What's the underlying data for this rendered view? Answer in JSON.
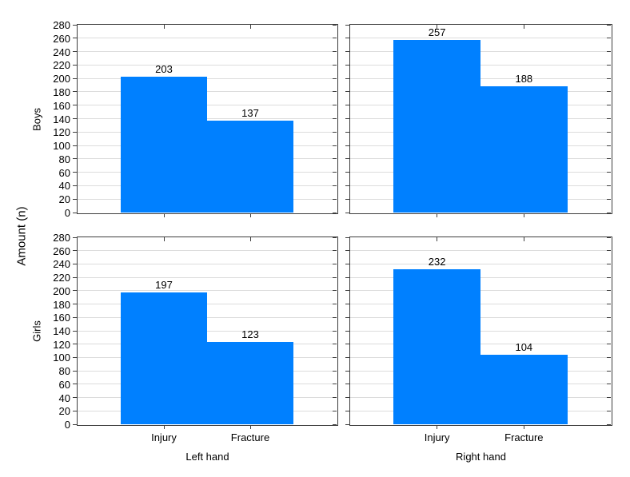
{
  "chart_data": {
    "type": "bar",
    "title": "",
    "ylabel": "Amount (n)",
    "xlabel": "",
    "row_labels": [
      "Boys",
      "Girls"
    ],
    "col_labels": [
      "Left hand",
      "Right hand"
    ],
    "categories": [
      "Injury",
      "Fracture"
    ],
    "ylim": [
      0,
      280
    ],
    "ytick_step": 20,
    "grid": true,
    "legend": "none",
    "panels": [
      {
        "row": "Boys",
        "col": "Left hand",
        "categories": [
          "Injury",
          "Fracture"
        ],
        "values": [
          203,
          137
        ]
      },
      {
        "row": "Boys",
        "col": "Right hand",
        "categories": [
          "Injury",
          "Fracture"
        ],
        "values": [
          257,
          188
        ]
      },
      {
        "row": "Girls",
        "col": "Left hand",
        "categories": [
          "Injury",
          "Fracture"
        ],
        "values": [
          197,
          123
        ]
      },
      {
        "row": "Girls",
        "col": "Right hand",
        "categories": [
          "Injury",
          "Fracture"
        ],
        "values": [
          232,
          104
        ]
      }
    ]
  },
  "colors": {
    "bar": "#0080FF",
    "grid": "#DCDCDC",
    "axis": "#3D3D3D",
    "background": "#FFFFFF",
    "text": "#000000"
  }
}
